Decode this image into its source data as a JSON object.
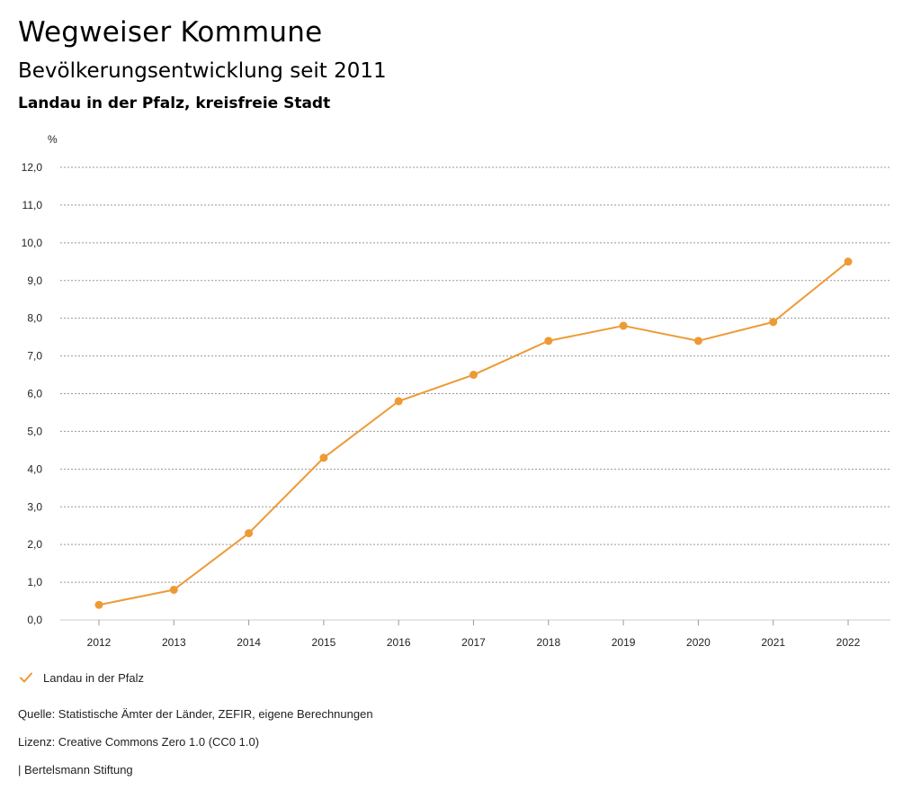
{
  "header": {
    "title": "Wegweiser Kommune",
    "subtitle": "Bevölkerungsentwicklung seit 2011",
    "region": "Landau in der Pfalz, kreisfreie Stadt"
  },
  "legend": {
    "label": "Landau in der Pfalz",
    "color": "#ed9a36"
  },
  "footer": {
    "source": "Quelle: Statistische Ämter der Länder, ZEFIR, eigene Berechnungen",
    "license": "Lizenz: Creative Commons Zero 1.0 (CC0 1.0)",
    "publisher": "| Bertelsmann Stiftung"
  },
  "chart_data": {
    "type": "line",
    "title": "",
    "xlabel": "",
    "ylabel": "%",
    "ylim": [
      0,
      12
    ],
    "grid": true,
    "legend_position": "bottom-left",
    "categories": [
      "2012",
      "2013",
      "2014",
      "2015",
      "2016",
      "2017",
      "2018",
      "2019",
      "2020",
      "2021",
      "2022"
    ],
    "y_ticks": [
      "0,0",
      "1,0",
      "2,0",
      "3,0",
      "4,0",
      "5,0",
      "6,0",
      "7,0",
      "8,0",
      "9,0",
      "10,0",
      "11,0",
      "12,0"
    ],
    "series": [
      {
        "name": "Landau in der Pfalz",
        "color": "#ed9a36",
        "values": [
          0.4,
          0.8,
          2.3,
          4.3,
          5.8,
          6.5,
          7.4,
          7.8,
          7.4,
          7.9,
          9.5
        ]
      }
    ]
  }
}
